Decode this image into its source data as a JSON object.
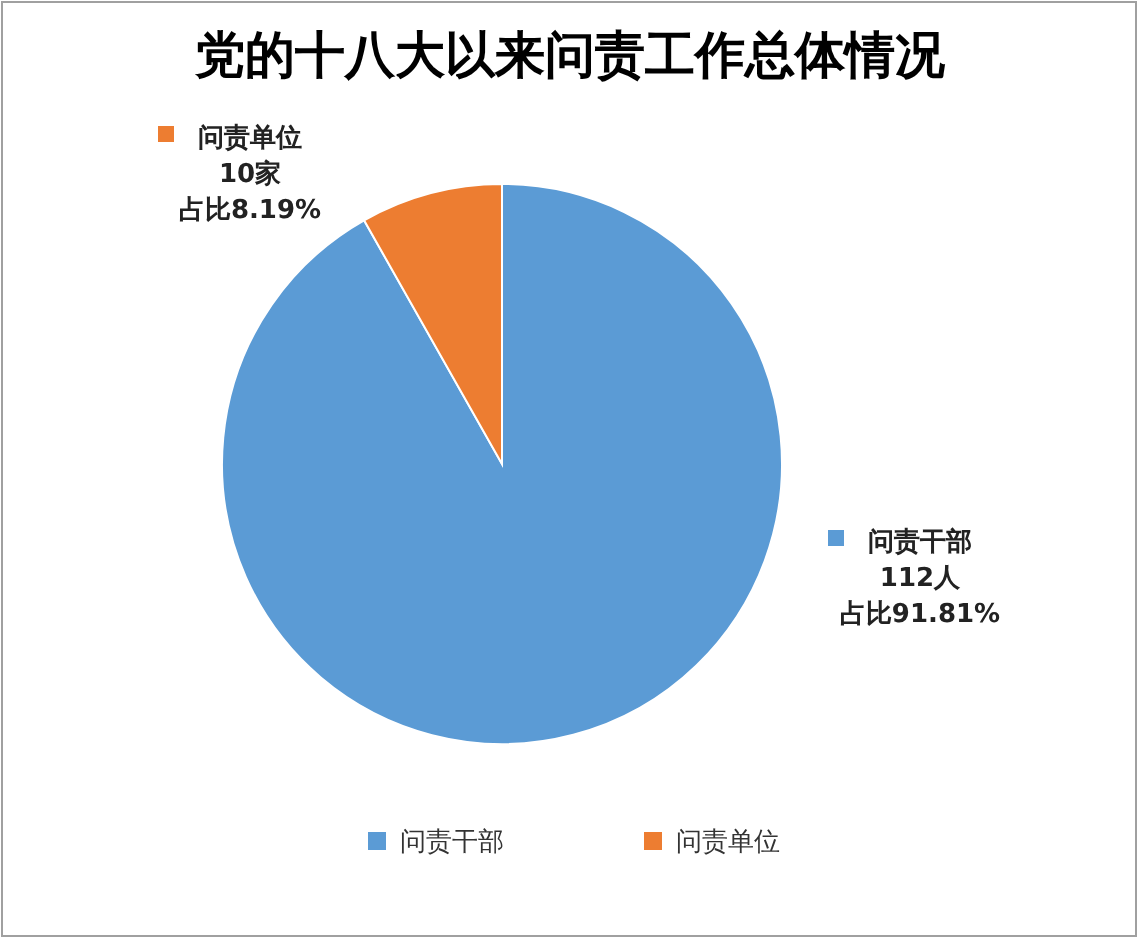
{
  "chart_data": {
    "type": "pie",
    "title": "党的十八大以来问责工作总体情况",
    "categories": [
      "问责干部",
      "问责单位"
    ],
    "values": [
      112,
      10
    ],
    "colors": [
      "#5b9bd5",
      "#ed7d31"
    ],
    "value_labels": [
      "112人",
      "10家"
    ],
    "annotations": [
      "占比91.81%",
      "占比8.19%"
    ],
    "legend": "bottom"
  }
}
